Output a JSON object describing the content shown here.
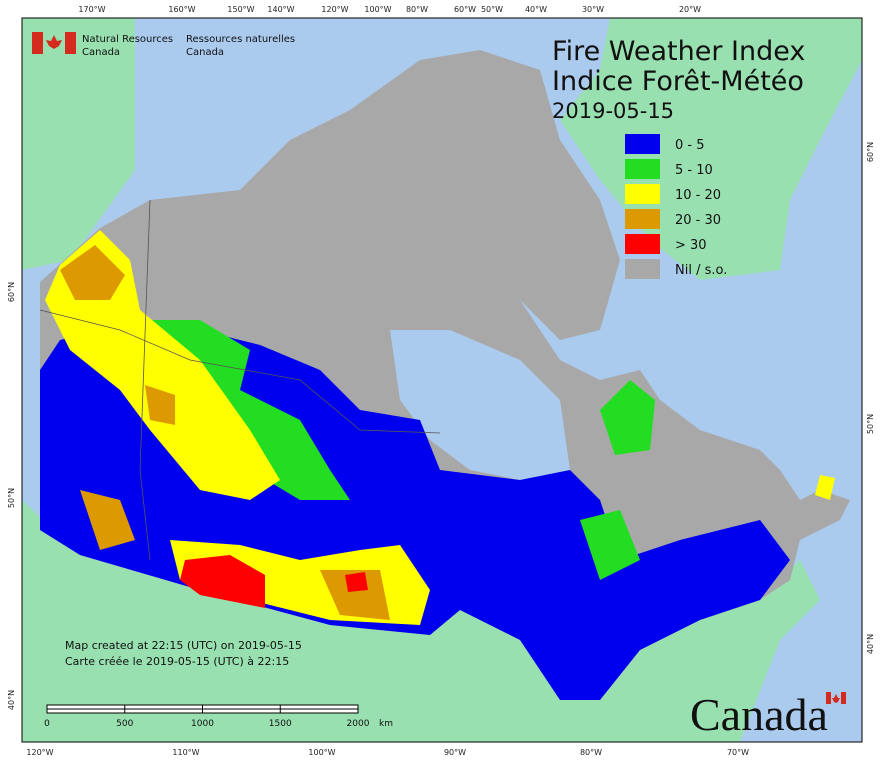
{
  "header": {
    "org_en": [
      "Natural Resources",
      "Canada"
    ],
    "org_fr": [
      "Ressources naturelles",
      "Canada"
    ]
  },
  "title": "Fire Weather Index",
  "title_fr": "Indice Forêt-Météo",
  "date": "2019-05-15",
  "legend": [
    {
      "label": "0 - 5",
      "color": "#0000ee"
    },
    {
      "label": "5 - 10",
      "color": "#22dd22"
    },
    {
      "label": "10 - 20",
      "color": "#ffff00"
    },
    {
      "label": "20 - 30",
      "color": "#dd9900"
    },
    {
      "label": "> 30",
      "color": "#ff0000"
    },
    {
      "label": "Nil / s.o.",
      "color": "#a8a8a8"
    }
  ],
  "notes": [
    "Map created at 22:15 (UTC) on 2019-05-15",
    "Carte créée le 2019-05-15 (UTC) à 22:15"
  ],
  "scale": {
    "ticks": [
      0,
      500,
      1000,
      1500,
      2000
    ],
    "unit": "km"
  },
  "graticule": {
    "top": [
      "170°W",
      "160°W",
      "150°W",
      "140°W",
      "120°W",
      "100°W",
      "80°W",
      "60°W",
      "50°W",
      "40°W",
      "30°W",
      "20°W"
    ],
    "bottom": [
      "120°W",
      "110°W",
      "100°W",
      "90°W",
      "80°W",
      "70°W"
    ],
    "left": [
      "60°N",
      "50°N",
      "40°N"
    ],
    "right": [
      "60°N",
      "50°N",
      "40°N"
    ]
  },
  "wordmark": "Canada"
}
